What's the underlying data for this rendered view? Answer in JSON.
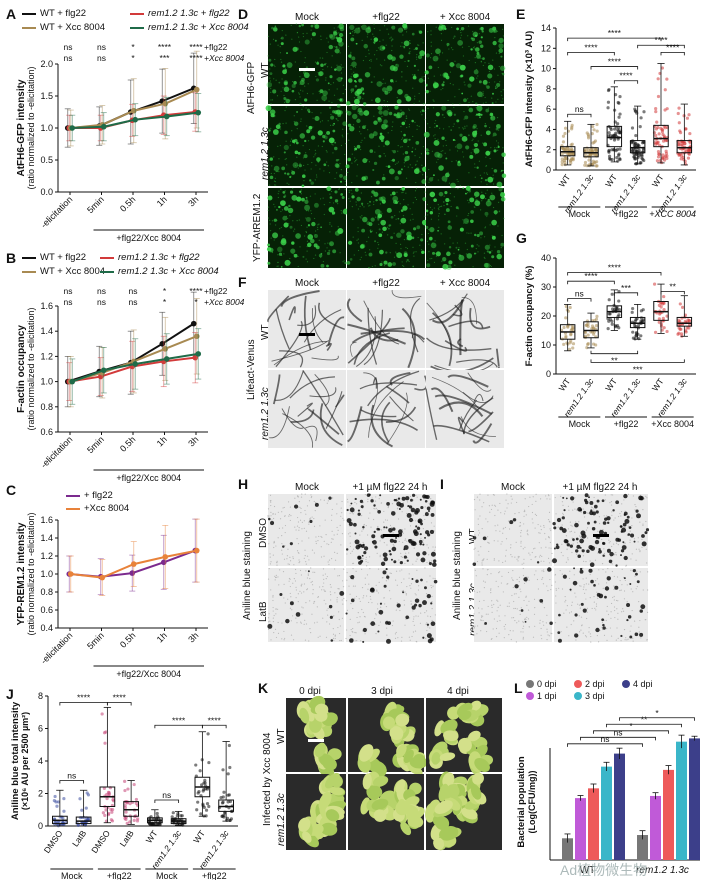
{
  "panels": {
    "A": {
      "label": "A",
      "legend": [
        {
          "text": "WT + flg22",
          "color": "#111111"
        },
        {
          "text": "rem1.2 1.3c + flg22",
          "color": "#d23a3a"
        },
        {
          "text": "WT + Xcc 8004",
          "color": "#a88a52"
        },
        {
          "text": "rem1.2 1.3c + Xcc 8004",
          "color": "#1f6b48"
        }
      ],
      "sig_row1": [
        "ns",
        "ns",
        "*",
        "****",
        "****"
      ],
      "sig_row1_label": "+flg22",
      "sig_row2": [
        "ns",
        "ns",
        "*",
        "***",
        "****"
      ],
      "sig_row2_label": "+Xcc 8004"
    },
    "B": {
      "label": "B",
      "sig_row1": [
        "ns",
        "ns",
        "ns",
        "*",
        "****"
      ],
      "sig_row1_label": "+flg22",
      "sig_row2": [
        "ns",
        "ns",
        "ns",
        "*",
        "*"
      ],
      "sig_row2_label": "+Xcc 8004"
    },
    "C": {
      "label": "C",
      "legend": [
        {
          "text": "+ flg22",
          "color": "#7b2a8e"
        },
        {
          "text": "+Xcc 8004",
          "color": "#e8823a"
        }
      ]
    },
    "D": {
      "label": "D",
      "cols": [
        "Mock",
        "+flg22",
        "+ Xcc 8004"
      ],
      "rows": [
        "WT",
        "rem1.2 1.3c",
        ""
      ],
      "side_labels": [
        "AtFH6-GFP",
        "YFP-AtREM1.2"
      ]
    },
    "E": {
      "label": "E",
      "group_labels": [
        "Mock",
        "+flg22",
        "+XCC 8004"
      ]
    },
    "F": {
      "label": "F",
      "cols": [
        "Mock",
        "+flg22",
        "+ Xcc 8004"
      ],
      "rows": [
        "WT",
        "rem1.2 1.3c"
      ],
      "side_label": "Lifeact-Venus"
    },
    "G": {
      "label": "G",
      "group_labels": [
        "Mock",
        "+flg22",
        "+Xcc 8004"
      ]
    },
    "H": {
      "label": "H",
      "cols": [
        "Mock",
        "+1 µM flg22 24 h"
      ],
      "rows": [
        "DMSO",
        "LatB"
      ],
      "side_label": "Aniline blue staining"
    },
    "I": {
      "label": "I",
      "cols": [
        "Mock",
        "+1 µM flg22 24 h"
      ],
      "rows": [
        "WT",
        "rem1.2 1.3c"
      ],
      "side_label": "Aniline blue staining"
    },
    "J": {
      "label": "J",
      "group_labels": [
        "Mock",
        "+flg22",
        "Mock",
        "+flg22"
      ]
    },
    "K": {
      "label": "K",
      "cols": [
        "0 dpi",
        "3 dpi",
        "4 dpi"
      ],
      "rows": [
        "WT",
        "rem1.2 1.3c"
      ],
      "side_label": "Infected by Xcc 8004"
    },
    "L": {
      "label": "L"
    }
  },
  "watermark": "Ad植物微生物",
  "chart_data": [
    {
      "id": "A",
      "type": "line",
      "title": "",
      "ylabel": "AtFH6-GFP intensity (ratio normalized to -elicitation)",
      "xlabel": "+flg22/Xcc 8004",
      "categories": [
        "-elicitation",
        "5min",
        "0.5h",
        "1h",
        "3h"
      ],
      "ylim": [
        0,
        2.0
      ],
      "yticks": [
        0,
        0.5,
        1.0,
        1.5,
        2.0
      ],
      "series": [
        {
          "name": "WT + flg22",
          "color": "#111111",
          "values": [
            1.0,
            1.03,
            1.25,
            1.42,
            1.62
          ],
          "err": [
            0.3,
            0.3,
            0.5,
            0.5,
            0.55
          ]
        },
        {
          "name": "rem1.2 1.3c + flg22",
          "color": "#d23a3a",
          "values": [
            1.0,
            1.0,
            1.12,
            1.2,
            1.25
          ],
          "err": [
            0.2,
            0.2,
            0.25,
            0.3,
            0.3
          ]
        },
        {
          "name": "WT + Xcc 8004",
          "color": "#a88a52",
          "values": [
            1.0,
            1.05,
            1.27,
            1.38,
            1.6
          ],
          "err": [
            0.28,
            0.3,
            0.5,
            0.55,
            0.6
          ]
        },
        {
          "name": "rem1.2 1.3c + Xcc 8004",
          "color": "#1f6b48",
          "values": [
            1.0,
            1.02,
            1.13,
            1.18,
            1.24
          ],
          "err": [
            0.2,
            0.22,
            0.25,
            0.3,
            0.3
          ]
        }
      ]
    },
    {
      "id": "B",
      "type": "line",
      "ylabel": "F-actin occupancy (ratio normalized to -elicitation)",
      "xlabel": "+flg22/Xcc 8004",
      "categories": [
        "-elicitation",
        "5min",
        "0.5h",
        "1h",
        "3h"
      ],
      "ylim": [
        0.6,
        1.6
      ],
      "yticks": [
        0.6,
        0.8,
        1.0,
        1.2,
        1.4,
        1.6
      ],
      "legend": [
        {
          "text": "WT + flg22",
          "color": "#111111"
        },
        {
          "text": "rem1.2 1.3c + flg22",
          "color": "#d23a3a"
        },
        {
          "text": "WT + Xcc 8004",
          "color": "#a88a52"
        },
        {
          "text": "rem1.2 1.3c + Xcc 8004",
          "color": "#1f6b48"
        }
      ],
      "series": [
        {
          "name": "WT + flg22",
          "color": "#111111",
          "values": [
            1.0,
            1.08,
            1.15,
            1.3,
            1.46
          ],
          "err": [
            0.2,
            0.2,
            0.25,
            0.25,
            0.25
          ]
        },
        {
          "name": "rem1.2 1.3c + flg22",
          "color": "#d23a3a",
          "values": [
            1.0,
            1.04,
            1.12,
            1.16,
            1.19
          ],
          "err": [
            0.15,
            0.15,
            0.2,
            0.2,
            0.2
          ]
        },
        {
          "name": "WT + Xcc 8004",
          "color": "#a88a52",
          "values": [
            1.0,
            1.07,
            1.16,
            1.26,
            1.36
          ],
          "err": [
            0.2,
            0.2,
            0.25,
            0.25,
            0.3
          ]
        },
        {
          "name": "rem1.2 1.3c + Xcc 8004",
          "color": "#1f6b48",
          "values": [
            1.0,
            1.09,
            1.14,
            1.18,
            1.22
          ],
          "err": [
            0.18,
            0.18,
            0.2,
            0.2,
            0.2
          ]
        }
      ]
    },
    {
      "id": "C",
      "type": "line",
      "ylabel": "YFP-REM1.2 intensity (ratio normalized to -elicitation)",
      "xlabel": "+flg22/Xcc 8004",
      "categories": [
        "-elicitation",
        "5min",
        "0.5h",
        "1h",
        "3h"
      ],
      "ylim": [
        0.4,
        1.6
      ],
      "yticks": [
        0.4,
        0.6,
        0.8,
        1.0,
        1.2,
        1.4,
        1.6
      ],
      "series": [
        {
          "name": "+ flg22",
          "color": "#7b2a8e",
          "values": [
            1.0,
            0.97,
            1.01,
            1.13,
            1.26
          ],
          "err": [
            0.2,
            0.2,
            0.2,
            0.3,
            0.35
          ]
        },
        {
          "name": "+Xcc 8004",
          "color": "#e8823a",
          "values": [
            1.0,
            0.96,
            1.11,
            1.19,
            1.26
          ],
          "err": [
            0.2,
            0.2,
            0.25,
            0.35,
            0.35
          ]
        }
      ]
    },
    {
      "id": "E",
      "type": "box",
      "ylabel": "AtFH6-GFP intensity (×10³ AU)",
      "ylim": [
        0,
        14
      ],
      "yticks": [
        0,
        2,
        4,
        6,
        8,
        10,
        12,
        14
      ],
      "categories": [
        "WT",
        "rem1.2 1.3c",
        "WT",
        "rem1.2 1.3c",
        "WT",
        "rem1.2 1.3c"
      ],
      "boxes": [
        {
          "q1": 1.4,
          "med": 1.8,
          "q3": 2.3,
          "min": 0.5,
          "max": 4.8,
          "color": "#a88a52"
        },
        {
          "q1": 1.3,
          "med": 1.7,
          "q3": 2.2,
          "min": 0.4,
          "max": 4.5,
          "color": "#a88a52"
        },
        {
          "q1": 2.3,
          "med": 3.2,
          "q3": 4.3,
          "min": 0.8,
          "max": 8.2,
          "color": "#111111"
        },
        {
          "q1": 1.7,
          "med": 2.2,
          "q3": 2.9,
          "min": 0.6,
          "max": 6.3,
          "color": "#111111"
        },
        {
          "q1": 2.3,
          "med": 3.1,
          "q3": 4.4,
          "min": 0.7,
          "max": 10.5,
          "color": "#d23a3a"
        },
        {
          "q1": 1.7,
          "med": 2.2,
          "q3": 2.9,
          "min": 0.5,
          "max": 6.5,
          "color": "#d23a3a"
        }
      ],
      "sig": [
        {
          "a": 0,
          "b": 1,
          "text": "ns",
          "y": 5.5
        },
        {
          "a": 2,
          "b": 3,
          "text": "****",
          "y": 8.8
        },
        {
          "a": 1,
          "b": 3,
          "text": "****",
          "y": 10.2
        },
        {
          "a": 0,
          "b": 2,
          "text": "****",
          "y": 11.6
        },
        {
          "a": 4,
          "b": 5,
          "text": "****",
          "y": 11.6
        },
        {
          "a": 0,
          "b": 4,
          "text": "****",
          "y": 13.0
        },
        {
          "a": 3,
          "b": 5,
          "text": "****",
          "y": 12.3
        }
      ]
    },
    {
      "id": "G",
      "type": "box",
      "ylabel": "F-actin occupancy (%)",
      "ylim": [
        0,
        40
      ],
      "yticks": [
        0,
        10,
        20,
        30,
        40
      ],
      "categories": [
        "WT",
        "rem1.2 1.3c",
        "WT",
        "rem1.2 1.3c",
        "WT",
        "rem1.2 1.3c"
      ],
      "boxes": [
        {
          "q1": 12,
          "med": 14.5,
          "q3": 17,
          "min": 8,
          "max": 24,
          "color": "#a88a52"
        },
        {
          "q1": 12.5,
          "med": 15,
          "q3": 18,
          "min": 9,
          "max": 21,
          "color": "#a88a52"
        },
        {
          "q1": 19.5,
          "med": 21.5,
          "q3": 23.5,
          "min": 15,
          "max": 29,
          "color": "#111111"
        },
        {
          "q1": 16,
          "med": 17.5,
          "q3": 19.5,
          "min": 12,
          "max": 24,
          "color": "#111111"
        },
        {
          "q1": 18.5,
          "med": 21.5,
          "q3": 25,
          "min": 14,
          "max": 31,
          "color": "#d23a3a"
        },
        {
          "q1": 16.5,
          "med": 17.5,
          "q3": 19.5,
          "min": 13,
          "max": 27,
          "color": "#d23a3a"
        }
      ],
      "sig": [
        {
          "a": 0,
          "b": 1,
          "text": "ns",
          "y": 26
        },
        {
          "a": 2,
          "b": 3,
          "text": "***",
          "y": 28
        },
        {
          "a": 4,
          "b": 5,
          "text": "**",
          "y": 28.5
        },
        {
          "a": 0,
          "b": 2,
          "text": "****",
          "y": 32
        },
        {
          "a": 0,
          "b": 4,
          "text": "****",
          "y": 35
        },
        {
          "a": 1,
          "b": 3,
          "text": "**",
          "y": 7,
          "below": true
        },
        {
          "a": 1,
          "b": 5,
          "text": "***",
          "y": 4,
          "below": true
        }
      ]
    },
    {
      "id": "J",
      "type": "box",
      "ylabel": "Aniline blue total intensity (×10⁶ AU per 2500 µm²)",
      "ylim": [
        0,
        8
      ],
      "yticks": [
        0,
        2,
        4,
        6,
        8
      ],
      "categories": [
        "DMSO",
        "LatB",
        "DMSO",
        "LatB",
        "WT",
        "rem1.2 1.3c",
        "WT",
        "rem1.2 1.3c"
      ],
      "boxes": [
        {
          "q1": 0.15,
          "med": 0.35,
          "q3": 0.6,
          "min": 0.0,
          "max": 2.2,
          "color": "#3d4fa0"
        },
        {
          "q1": 0.15,
          "med": 0.3,
          "q3": 0.55,
          "min": 0.0,
          "max": 2.2,
          "color": "#3d4fa0"
        },
        {
          "q1": 1.2,
          "med": 1.8,
          "q3": 2.4,
          "min": 0.2,
          "max": 7.3,
          "color": "#c44477"
        },
        {
          "q1": 0.6,
          "med": 1.0,
          "q3": 1.5,
          "min": 0.1,
          "max": 2.8,
          "color": "#c44477"
        },
        {
          "q1": 0.2,
          "med": 0.35,
          "q3": 0.5,
          "min": 0.05,
          "max": 1.0,
          "color": "#111111"
        },
        {
          "q1": 0.15,
          "med": 0.3,
          "q3": 0.45,
          "min": 0.05,
          "max": 0.9,
          "color": "#111111"
        },
        {
          "q1": 1.8,
          "med": 2.4,
          "q3": 3.0,
          "min": 0.6,
          "max": 5.8,
          "color": "#111111"
        },
        {
          "q1": 0.9,
          "med": 1.2,
          "q3": 1.6,
          "min": 0.3,
          "max": 5.2,
          "color": "#111111"
        }
      ],
      "sig": [
        {
          "a": 0,
          "b": 1,
          "text": "ns",
          "y": 2.8
        },
        {
          "a": 0,
          "b": 2,
          "text": "****",
          "y": 7.6
        },
        {
          "a": 2,
          "b": 3,
          "text": "****",
          "y": 7.6
        },
        {
          "a": 4,
          "b": 5,
          "text": "ns",
          "y": 1.6
        },
        {
          "a": 4,
          "b": 6,
          "text": "****",
          "y": 6.2
        },
        {
          "a": 6,
          "b": 7,
          "text": "****",
          "y": 6.2
        }
      ]
    },
    {
      "id": "L",
      "type": "bar",
      "ylabel": "Bacterial population (Log(CFU/mg))",
      "ylim": [
        2,
        9
      ],
      "yticks": [],
      "groups": [
        "WT",
        "rem1.2 1.3c"
      ],
      "series": [
        {
          "name": "0 dpi",
          "color": "#777777",
          "values": [
            3.0,
            3.15
          ],
          "err": [
            0.2,
            0.2
          ]
        },
        {
          "name": "1 dpi",
          "color": "#c05ad8",
          "values": [
            4.85,
            4.95
          ],
          "err": [
            0.12,
            0.15
          ]
        },
        {
          "name": "2 dpi",
          "color": "#ee5a5a",
          "values": [
            5.3,
            6.15
          ],
          "err": [
            0.2,
            0.2
          ]
        },
        {
          "name": "3 dpi",
          "color": "#3ab6c9",
          "values": [
            6.3,
            7.45
          ],
          "err": [
            0.2,
            0.3
          ]
        },
        {
          "name": "4 dpi",
          "color": "#3c3f8a",
          "values": [
            6.9,
            7.6
          ],
          "err": [
            0.25,
            0.1
          ]
        }
      ],
      "sig": [
        {
          "text": "*",
          "y": 8.55
        },
        {
          "text": "**",
          "y": 8.25
        },
        {
          "text": "*",
          "y": 7.95
        },
        {
          "text": "ns",
          "y": 7.65
        },
        {
          "text": "ns",
          "y": 7.35
        }
      ]
    }
  ]
}
